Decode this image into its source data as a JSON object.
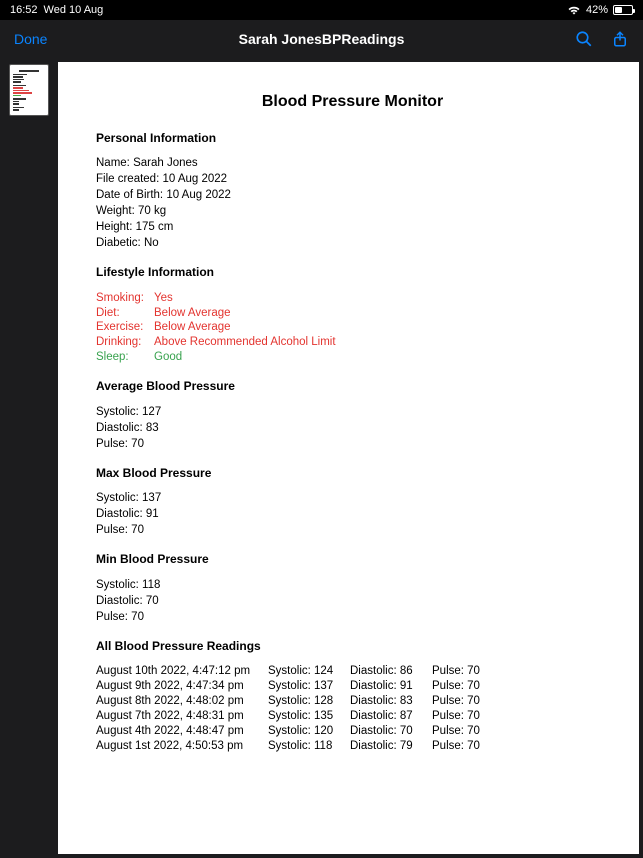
{
  "status": {
    "time": "16:52",
    "date": "Wed 10 Aug",
    "battery_pct": "42%",
    "battery_fill_pct": 42
  },
  "nav": {
    "done": "Done",
    "title": "Sarah JonesBPReadings"
  },
  "doc": {
    "title": "Blood Pressure Monitor",
    "personal": {
      "heading": "Personal Information",
      "name_label": "Name:",
      "name": "Sarah Jones",
      "file_created_label": "File created:",
      "file_created": "10 Aug 2022",
      "dob_label": "Date of Birth:",
      "dob": "10 Aug 2022",
      "weight_label": "Weight:",
      "weight": "70 kg",
      "height_label": "Height:",
      "height": "175 cm",
      "diabetic_label": "Diabetic:",
      "diabetic": "No"
    },
    "lifestyle": {
      "heading": "Lifestyle Information",
      "rows": [
        {
          "label": "Smoking:",
          "value": "Yes",
          "color": "red"
        },
        {
          "label": "Diet:",
          "value": "Below Average",
          "color": "red"
        },
        {
          "label": "Exercise:",
          "value": "Below Average",
          "color": "red"
        },
        {
          "label": "Drinking:",
          "value": "Above Recommended Alcohol Limit",
          "color": "red"
        },
        {
          "label": "Sleep:",
          "value": "Good",
          "color": "green"
        }
      ]
    },
    "avg": {
      "heading": "Average Blood Pressure",
      "systolic": "127",
      "diastolic": "83",
      "pulse": "70"
    },
    "max": {
      "heading": "Max Blood Pressure",
      "systolic": "137",
      "diastolic": "91",
      "pulse": "70"
    },
    "min": {
      "heading": "Min Blood Pressure",
      "systolic": "118",
      "diastolic": "70",
      "pulse": "70"
    },
    "labels": {
      "systolic": "Systolic:",
      "diastolic": "Diastolic:",
      "pulse": "Pulse:"
    },
    "readings": {
      "heading": "All Blood Pressure Readings",
      "rows": [
        {
          "dt": "August 10th 2022, 4:47:12 pm",
          "sys": "124",
          "dia": "86",
          "pul": "70"
        },
        {
          "dt": "August 9th 2022, 4:47:34 pm",
          "sys": "137",
          "dia": "91",
          "pul": "70"
        },
        {
          "dt": "August 8th 2022, 4:48:02 pm",
          "sys": "128",
          "dia": "83",
          "pul": "70"
        },
        {
          "dt": "August 7th 2022, 4:48:31 pm",
          "sys": "135",
          "dia": "87",
          "pul": "70"
        },
        {
          "dt": "August 4th 2022, 4:48:47 pm",
          "sys": "120",
          "dia": "70",
          "pul": "70"
        },
        {
          "dt": "August 1st 2022, 4:50:53 pm",
          "sys": "118",
          "dia": "79",
          "pul": "70"
        }
      ]
    }
  },
  "colors": {
    "background": "#000000",
    "nav_bg": "#1c1c1e",
    "accent": "#0a84ff",
    "white": "#ffffff",
    "red": "#e3342f",
    "green": "#38a24e"
  }
}
